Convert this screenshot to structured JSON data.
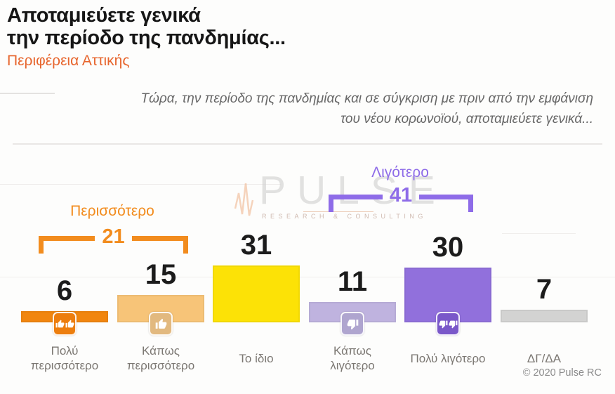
{
  "header": {
    "title_line1": "Αποταμιεύετε γενικά",
    "title_line2": "την περίοδο της πανδημίας...",
    "subtitle": "Περιφέρεια Αττικής"
  },
  "question": {
    "line1": "Τώρα, την περίοδο της πανδημίας και σε σύγκριση με πριν από την εμφάνιση",
    "line2": "του νέου κορωνοϊού, αποταμιεύετε γενικά..."
  },
  "watermark": {
    "brand": "PULSE",
    "caption": "RESEARCH & CONSULTING"
  },
  "footer": {
    "copyright": "© 2020 Pulse RC"
  },
  "chart_data": {
    "type": "bar",
    "title": "Αποταμιεύετε γενικά την περίοδο της πανδημίας...",
    "subtitle": "Περιφέρεια Αττικής",
    "note": "Τώρα, την περίοδο της πανδημίας και σε σύγκριση με πριν από την εμφάνιση του νέου κορωνοϊού, αποταμιεύετε γενικά...",
    "categories": [
      "Πολύ περισσότερο",
      "Κάπως περισσότερο",
      "Το ίδιο",
      "Κάπως λιγότερο",
      "Πολύ λιγότερο",
      "ΔΓ/ΔΑ"
    ],
    "values": [
      6,
      15,
      31,
      11,
      30,
      7
    ],
    "bar_colors": [
      "#F1860F",
      "#F7C478",
      "#FCE206",
      "#BFB3DF",
      "#9170DC",
      "#D3D3D2"
    ],
    "icon_colors": [
      "#ED7E0E",
      "#E2B97F",
      null,
      "#AFA5CF",
      "#7A58C9",
      null
    ],
    "icons": [
      "thumbs-up-double",
      "thumbs-up",
      null,
      "thumbs-down",
      "thumbs-down-double",
      null
    ],
    "groups": [
      {
        "label": "Περισσότερο",
        "value": 21,
        "color": "#F28C1E",
        "from_bar": 0,
        "to_bar": 1
      },
      {
        "label": "Λιγότερο",
        "value": 41,
        "color": "#8E6CE8",
        "from_bar": 3,
        "to_bar": 4
      }
    ],
    "ylim": [
      0,
      35
    ],
    "grid": false,
    "legend": false
  }
}
